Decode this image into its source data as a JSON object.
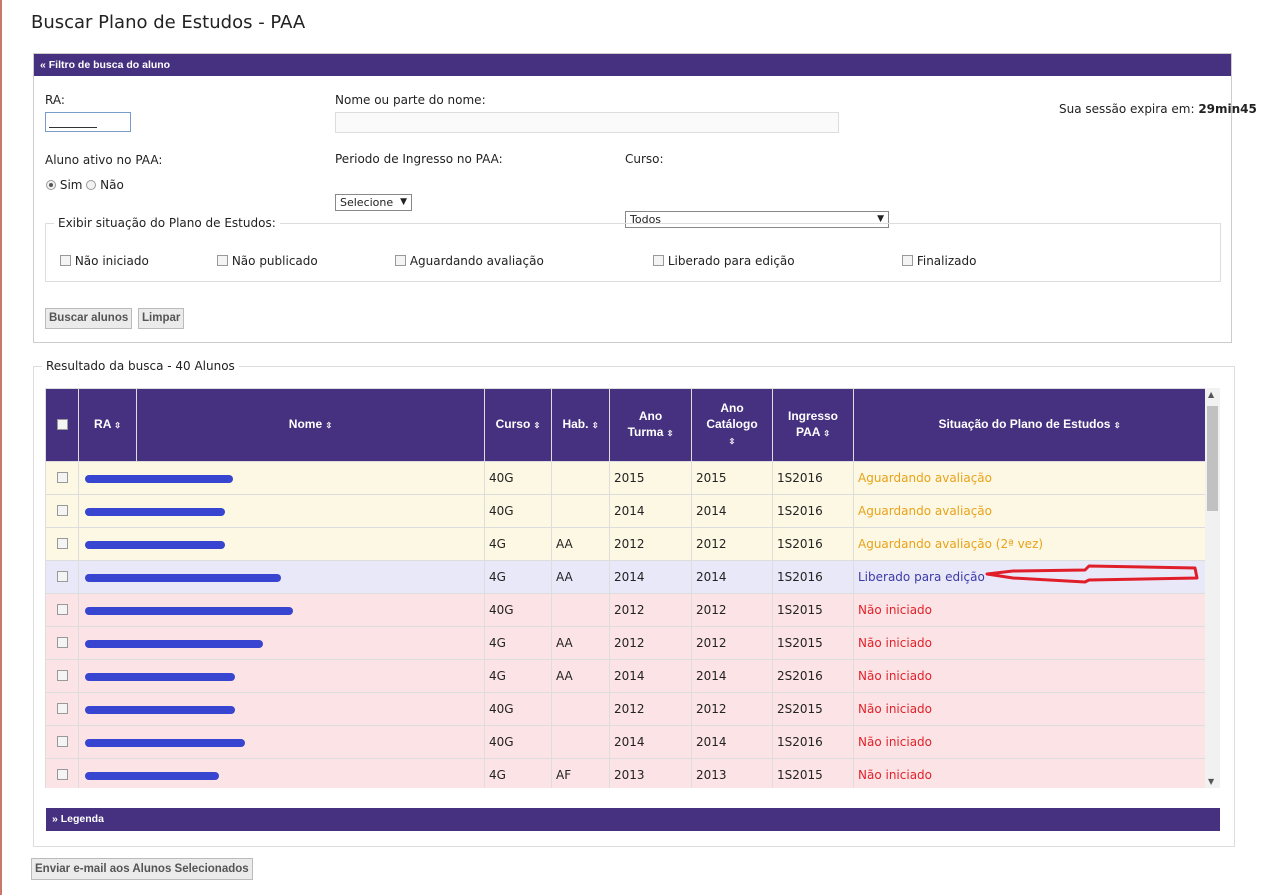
{
  "page": {
    "title": "Buscar Plano de Estudos - PAA",
    "session_label": "Sua sessão expira em:",
    "session_time": "29min45"
  },
  "filter": {
    "header": "«  Filtro de busca do aluno",
    "ra_label": "RA:",
    "name_label": "Nome ou parte do nome:",
    "active_label": "Aluno ativo no PAA:",
    "active_options": [
      "Sim",
      "Não"
    ],
    "active_selected": "Sim",
    "period_label": "Periodo de Ingresso no PAA:",
    "period_value": "Selecione",
    "course_label": "Curso:",
    "course_value": "Todos",
    "situation_legend": "Exibir situação do Plano de Estudos:",
    "situations": [
      "Não iniciado",
      "Não publicado",
      "Aguardando avaliação",
      "Liberado para edição",
      "Finalizado"
    ],
    "search_button": "Buscar alunos",
    "clear_button": "Limpar"
  },
  "results": {
    "legend": "Resultado da busca - 40 Alunos",
    "columns": {
      "ra": "RA",
      "nome": "Nome",
      "curso": "Curso",
      "hab": "Hab.",
      "ano_turma_1": "Ano",
      "ano_turma_2": "Turma",
      "ano_catalogo_1": "Ano",
      "ano_catalogo_2": "Catálogo",
      "ingresso_1": "Ingresso",
      "ingresso_2": "PAA",
      "situacao": "Situação do Plano de Estudos"
    },
    "sort_glyph": "⇳",
    "rows": [
      {
        "curso": "40G",
        "hab": "",
        "turma": "2015",
        "catalogo": "2015",
        "ingresso": "1S2016",
        "situacao": "Aguardando avaliação",
        "status": "aguardando"
      },
      {
        "curso": "40G",
        "hab": "",
        "turma": "2014",
        "catalogo": "2014",
        "ingresso": "1S2016",
        "situacao": "Aguardando avaliação",
        "status": "aguardando"
      },
      {
        "curso": "4G",
        "hab": "AA",
        "turma": "2012",
        "catalogo": "2012",
        "ingresso": "1S2016",
        "situacao": "Aguardando avaliação (2ª vez)",
        "status": "aguardando"
      },
      {
        "curso": "4G",
        "hab": "AA",
        "turma": "2014",
        "catalogo": "2014",
        "ingresso": "1S2016",
        "situacao": "Liberado para edição",
        "status": "liberado"
      },
      {
        "curso": "40G",
        "hab": "",
        "turma": "2012",
        "catalogo": "2012",
        "ingresso": "1S2015",
        "situacao": "Não iniciado",
        "status": "nao"
      },
      {
        "curso": "4G",
        "hab": "AA",
        "turma": "2012",
        "catalogo": "2012",
        "ingresso": "1S2015",
        "situacao": "Não iniciado",
        "status": "nao"
      },
      {
        "curso": "4G",
        "hab": "AA",
        "turma": "2014",
        "catalogo": "2014",
        "ingresso": "2S2016",
        "situacao": "Não iniciado",
        "status": "nao"
      },
      {
        "curso": "40G",
        "hab": "",
        "turma": "2012",
        "catalogo": "2012",
        "ingresso": "2S2015",
        "situacao": "Não iniciado",
        "status": "nao"
      },
      {
        "curso": "40G",
        "hab": "",
        "turma": "2014",
        "catalogo": "2014",
        "ingresso": "1S2016",
        "situacao": "Não iniciado",
        "status": "nao"
      },
      {
        "curso": "4G",
        "hab": "AF",
        "turma": "2013",
        "catalogo": "2013",
        "ingresso": "1S2015",
        "situacao": "Não iniciado",
        "status": "nao"
      }
    ],
    "legend_bar": "»  Legenda",
    "email_button": "Enviar e-mail aos Alunos Selecionados"
  },
  "colors": {
    "header": "#45317f",
    "aguardando": "#e8a21a",
    "liberado": "#3b3aa8",
    "nao": "#e0222a",
    "annotation": "#e01e2a"
  }
}
